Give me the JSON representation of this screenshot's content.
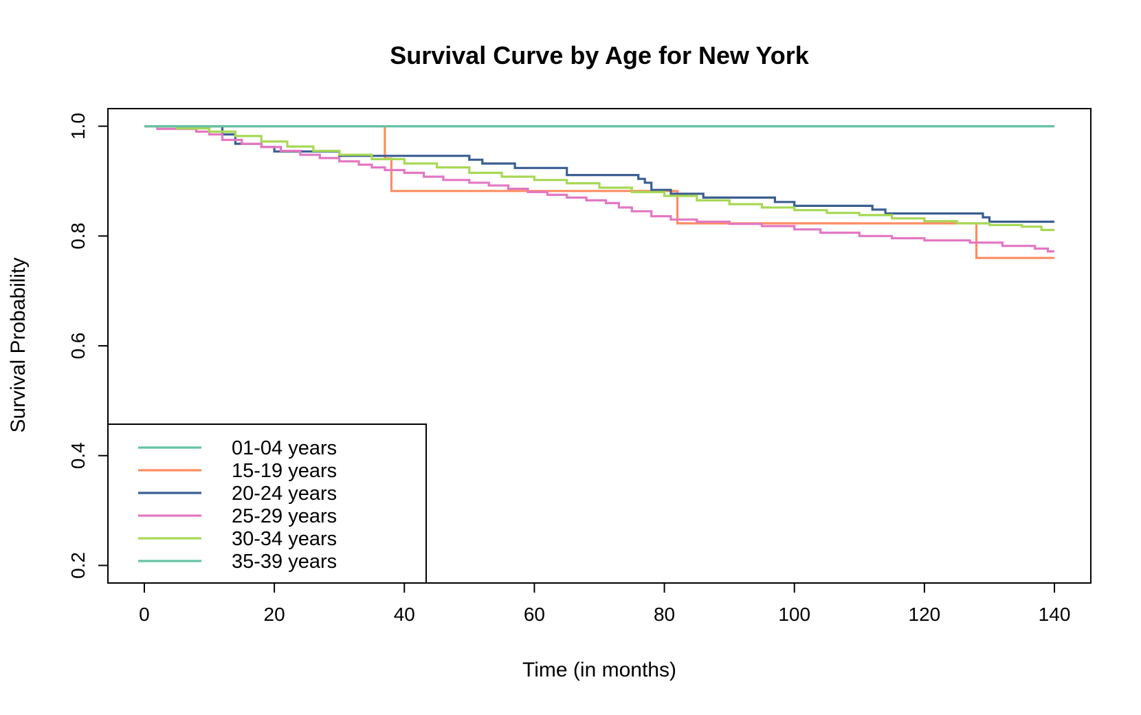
{
  "chart_data": {
    "type": "line",
    "step": true,
    "title": "Survival Curve by Age for New York",
    "xlabel": "Time (in months)",
    "ylabel": "Survival Probability",
    "xlim": [
      -5.6,
      145.6
    ],
    "ylim": [
      0.168,
      1.032
    ],
    "xticks": [
      0,
      20,
      40,
      60,
      80,
      100,
      120,
      140
    ],
    "yticks": [
      0.2,
      0.4,
      0.6,
      0.8,
      1.0
    ],
    "xtick_labels": [
      "0",
      "20",
      "40",
      "60",
      "80",
      "100",
      "120",
      "140"
    ],
    "ytick_labels": [
      "0.2",
      "0.4",
      "0.6",
      "0.8",
      "1.0"
    ],
    "grid": false,
    "legend_position": "bottom-left",
    "legend": [
      "01-04 years",
      "15-19 years",
      "20-24 years",
      "25-29 years",
      "30-34 years",
      "35-39 years"
    ],
    "series": [
      {
        "name": "01-04 years",
        "color": "#66c2a5",
        "x": [
          0,
          140
        ],
        "y": [
          1.0,
          1.0
        ]
      },
      {
        "name": "15-19 years",
        "color": "#fc8d62",
        "x": [
          0,
          37,
          38,
          82,
          128,
          140
        ],
        "y": [
          1.0,
          0.941,
          0.882,
          0.823,
          0.76,
          0.76
        ]
      },
      {
        "name": "20-24 years",
        "color": "#3b5e91",
        "x": [
          0,
          12,
          14,
          18,
          20,
          30,
          50,
          52,
          57,
          65,
          76,
          77,
          78,
          81,
          86,
          97,
          100,
          112,
          114,
          129,
          130,
          140
        ],
        "y": [
          1.0,
          0.985,
          0.968,
          0.962,
          0.954,
          0.946,
          0.939,
          0.932,
          0.924,
          0.911,
          0.904,
          0.897,
          0.884,
          0.877,
          0.87,
          0.862,
          0.855,
          0.848,
          0.841,
          0.834,
          0.826,
          0.826
        ]
      },
      {
        "name": "25-29 years",
        "color": "#e377c2",
        "x": [
          0,
          2,
          8,
          10,
          12,
          15,
          18,
          21,
          24,
          27,
          30,
          33,
          35,
          37,
          40,
          43,
          46,
          50,
          53,
          56,
          59,
          62,
          65,
          68,
          71,
          73,
          75,
          78,
          81,
          85,
          90,
          95,
          100,
          104,
          110,
          115,
          120,
          127,
          132,
          137,
          139,
          140
        ],
        "y": [
          1.0,
          0.995,
          0.99,
          0.985,
          0.975,
          0.968,
          0.962,
          0.955,
          0.948,
          0.942,
          0.936,
          0.93,
          0.925,
          0.92,
          0.915,
          0.908,
          0.902,
          0.897,
          0.892,
          0.886,
          0.88,
          0.875,
          0.87,
          0.865,
          0.86,
          0.852,
          0.845,
          0.836,
          0.83,
          0.826,
          0.822,
          0.818,
          0.812,
          0.806,
          0.8,
          0.796,
          0.792,
          0.788,
          0.782,
          0.777,
          0.772,
          0.772
        ]
      },
      {
        "name": "30-34 years",
        "color": "#a6d854",
        "x": [
          0,
          5,
          10,
          14,
          18,
          22,
          26,
          30,
          35,
          40,
          45,
          50,
          55,
          60,
          65,
          70,
          75,
          80,
          85,
          90,
          95,
          100,
          105,
          110,
          115,
          120,
          125,
          130,
          135,
          138,
          140
        ],
        "y": [
          1.0,
          0.996,
          0.99,
          0.982,
          0.972,
          0.963,
          0.955,
          0.948,
          0.94,
          0.932,
          0.925,
          0.915,
          0.908,
          0.902,
          0.896,
          0.888,
          0.88,
          0.873,
          0.865,
          0.858,
          0.852,
          0.847,
          0.842,
          0.838,
          0.832,
          0.827,
          0.823,
          0.82,
          0.817,
          0.811,
          0.811
        ]
      },
      {
        "name": "35-39 years",
        "color": "#66c2a5",
        "x": [
          0,
          140
        ],
        "y": [
          1.0,
          1.0
        ]
      }
    ]
  }
}
